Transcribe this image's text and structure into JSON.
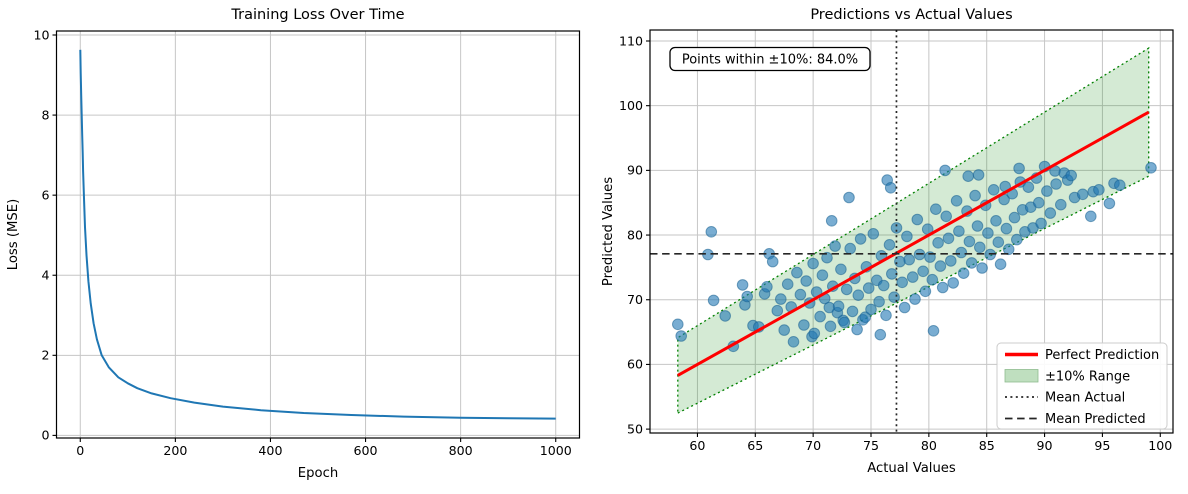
{
  "chart_data": [
    {
      "type": "line",
      "title": "Training Loss Over Time",
      "xlabel": "Epoch",
      "ylabel": "Loss (MSE)",
      "xlim": [
        -50,
        1050
      ],
      "ylim": [
        -0.065,
        10.1
      ],
      "xticks": [
        0,
        200,
        400,
        600,
        800,
        1000
      ],
      "yticks": [
        0,
        2,
        4,
        6,
        8,
        10
      ],
      "grid": true,
      "line_color": "#1f77b4",
      "x": [
        0,
        1,
        2,
        3,
        4,
        5,
        6,
        8,
        10,
        13,
        17,
        22,
        28,
        35,
        45,
        60,
        80,
        100,
        120,
        150,
        190,
        240,
        300,
        380,
        470,
        570,
        680,
        800,
        900,
        1000
      ],
      "y": [
        9.63,
        9.05,
        8.5,
        8.0,
        7.5,
        7.05,
        6.6,
        5.85,
        5.2,
        4.5,
        3.85,
        3.3,
        2.8,
        2.4,
        2.0,
        1.7,
        1.45,
        1.3,
        1.18,
        1.05,
        0.93,
        0.82,
        0.72,
        0.63,
        0.56,
        0.51,
        0.47,
        0.44,
        0.43,
        0.42
      ]
    },
    {
      "type": "scatter",
      "title": "Predictions vs Actual Values",
      "xlabel": "Actual Values",
      "ylabel": "Predicted Values",
      "xlim": [
        55.9,
        101.1
      ],
      "ylim": [
        49.4,
        111.7
      ],
      "xticks": [
        60,
        65,
        70,
        75,
        80,
        85,
        90,
        95,
        100
      ],
      "yticks": [
        50,
        60,
        70,
        80,
        90,
        100,
        110
      ],
      "grid": true,
      "annotation": "Points within ±10%: 84.0%",
      "mean_actual": 77.2,
      "mean_predicted": 77.1,
      "band": {
        "x_start": 58.3,
        "x_end": 99.0,
        "lower_factor": 0.9,
        "upper_factor": 1.1,
        "color": "#008000",
        "fill_opacity": 0.17
      },
      "perfect_line": {
        "x_start": 58.3,
        "x_end": 99.0,
        "color": "#ff0000"
      },
      "point_color": "#1f77b4",
      "point_opacity": 0.6,
      "legend": [
        "Perfect Prediction",
        "±10% Range",
        "Mean Actual",
        "Mean Predicted"
      ],
      "legend_position": "lower right",
      "points": [
        [
          58.3,
          66.2
        ],
        [
          58.6,
          64.4
        ],
        [
          60.9,
          77.0
        ],
        [
          61.2,
          80.5
        ],
        [
          61.4,
          69.9
        ],
        [
          62.4,
          67.5
        ],
        [
          63.1,
          62.8
        ],
        [
          63.9,
          72.3
        ],
        [
          64.1,
          69.2
        ],
        [
          64.3,
          70.5
        ],
        [
          64.8,
          66.0
        ],
        [
          65.3,
          65.8
        ],
        [
          65.8,
          70.9
        ],
        [
          66.0,
          72.0
        ],
        [
          66.2,
          77.1
        ],
        [
          66.5,
          75.9
        ],
        [
          66.9,
          68.3
        ],
        [
          67.2,
          70.1
        ],
        [
          67.5,
          65.3
        ],
        [
          67.8,
          72.4
        ],
        [
          68.1,
          68.9
        ],
        [
          68.3,
          63.5
        ],
        [
          68.6,
          74.2
        ],
        [
          68.9,
          70.8
        ],
        [
          69.2,
          66.1
        ],
        [
          69.4,
          72.9
        ],
        [
          69.7,
          69.5
        ],
        [
          69.9,
          64.3
        ],
        [
          70.0,
          75.6
        ],
        [
          70.1,
          64.8
        ],
        [
          70.3,
          71.2
        ],
        [
          70.6,
          67.4
        ],
        [
          70.8,
          73.8
        ],
        [
          71.0,
          70.2
        ],
        [
          71.2,
          76.5
        ],
        [
          71.4,
          68.8
        ],
        [
          71.5,
          65.9
        ],
        [
          71.6,
          82.2
        ],
        [
          71.7,
          72.1
        ],
        [
          71.9,
          78.3
        ],
        [
          72.1,
          68.0
        ],
        [
          72.2,
          69.0
        ],
        [
          72.4,
          74.7
        ],
        [
          72.6,
          66.8
        ],
        [
          72.7,
          66.5
        ],
        [
          72.9,
          71.6
        ],
        [
          73.1,
          85.8
        ],
        [
          73.2,
          77.9
        ],
        [
          73.4,
          68.2
        ],
        [
          73.6,
          73.3
        ],
        [
          73.8,
          65.4
        ],
        [
          73.9,
          70.7
        ],
        [
          74.1,
          79.4
        ],
        [
          74.3,
          66.9
        ],
        [
          74.5,
          67.3
        ],
        [
          74.6,
          75.1
        ],
        [
          74.8,
          71.8
        ],
        [
          75.0,
          68.5
        ],
        [
          75.2,
          80.2
        ],
        [
          75.5,
          73.0
        ],
        [
          75.7,
          69.7
        ],
        [
          75.8,
          64.6
        ],
        [
          75.9,
          76.8
        ],
        [
          76.1,
          72.2
        ],
        [
          76.3,
          67.6
        ],
        [
          76.4,
          88.5
        ],
        [
          76.6,
          78.5
        ],
        [
          76.7,
          87.3
        ],
        [
          76.8,
          74.0
        ],
        [
          77.0,
          70.4
        ],
        [
          77.2,
          81.1
        ],
        [
          77.5,
          75.9
        ],
        [
          77.7,
          72.7
        ],
        [
          77.9,
          68.8
        ],
        [
          78.1,
          79.8
        ],
        [
          78.3,
          76.2
        ],
        [
          78.6,
          73.5
        ],
        [
          78.8,
          70.1
        ],
        [
          79.0,
          82.4
        ],
        [
          79.2,
          77.0
        ],
        [
          79.5,
          74.4
        ],
        [
          79.7,
          71.3
        ],
        [
          79.9,
          80.9
        ],
        [
          80.1,
          76.6
        ],
        [
          80.3,
          73.1
        ],
        [
          80.4,
          65.2
        ],
        [
          80.6,
          84.0
        ],
        [
          80.8,
          78.8
        ],
        [
          81.0,
          75.2
        ],
        [
          81.2,
          71.9
        ],
        [
          81.4,
          90.0
        ],
        [
          81.5,
          82.9
        ],
        [
          81.7,
          79.5
        ],
        [
          81.9,
          76.0
        ],
        [
          82.1,
          72.6
        ],
        [
          82.4,
          85.3
        ],
        [
          82.6,
          80.6
        ],
        [
          82.8,
          77.3
        ],
        [
          83.0,
          74.1
        ],
        [
          83.3,
          83.7
        ],
        [
          83.4,
          89.1
        ],
        [
          83.5,
          79.0
        ],
        [
          83.7,
          75.7
        ],
        [
          84.0,
          86.1
        ],
        [
          84.2,
          81.4
        ],
        [
          84.3,
          89.3
        ],
        [
          84.4,
          78.1
        ],
        [
          84.6,
          74.9
        ],
        [
          84.9,
          84.6
        ],
        [
          85.1,
          80.3
        ],
        [
          85.3,
          77.0
        ],
        [
          85.6,
          87.0
        ],
        [
          85.8,
          82.2
        ],
        [
          86.0,
          78.9
        ],
        [
          86.2,
          75.5
        ],
        [
          86.5,
          85.5
        ],
        [
          86.6,
          87.5
        ],
        [
          86.7,
          81.0
        ],
        [
          86.9,
          77.8
        ],
        [
          87.2,
          86.4
        ],
        [
          87.4,
          82.7
        ],
        [
          87.6,
          79.3
        ],
        [
          87.8,
          90.3
        ],
        [
          87.9,
          88.2
        ],
        [
          88.1,
          83.9
        ],
        [
          88.3,
          80.5
        ],
        [
          88.6,
          87.4
        ],
        [
          88.8,
          84.3
        ],
        [
          89.0,
          81.1
        ],
        [
          89.3,
          88.8
        ],
        [
          89.5,
          85.0
        ],
        [
          89.7,
          81.8
        ],
        [
          90.0,
          90.6
        ],
        [
          90.2,
          86.8
        ],
        [
          90.5,
          83.4
        ],
        [
          90.9,
          89.9
        ],
        [
          91.0,
          87.9
        ],
        [
          91.4,
          84.7
        ],
        [
          91.7,
          89.6
        ],
        [
          92.0,
          88.5
        ],
        [
          92.3,
          89.2
        ],
        [
          92.6,
          85.8
        ],
        [
          93.3,
          86.3
        ],
        [
          94.0,
          82.9
        ],
        [
          94.2,
          86.7
        ],
        [
          94.7,
          87.0
        ],
        [
          95.6,
          84.9
        ],
        [
          96.0,
          88.0
        ],
        [
          96.5,
          87.7
        ],
        [
          99.2,
          90.4
        ]
      ]
    }
  ]
}
